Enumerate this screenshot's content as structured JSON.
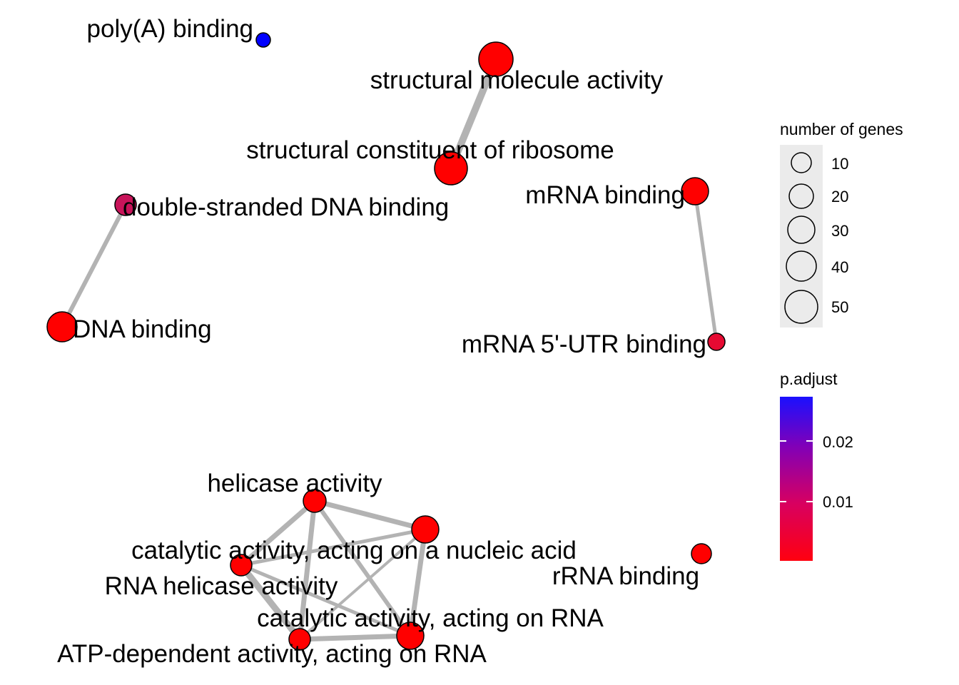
{
  "network": {
    "nodes": [
      {
        "id": "polyA",
        "label": "poly(A) binding",
        "color": "#0000ff"
      },
      {
        "id": "sma",
        "label": "structural molecule activity",
        "color": "#ff0000"
      },
      {
        "id": "scr",
        "label": "structural constituent of ribosome",
        "color": "#ff0000"
      },
      {
        "id": "dsdna",
        "label": "double-stranded DNA binding",
        "color": "#c8145a"
      },
      {
        "id": "dna",
        "label": "DNA binding",
        "color": "#ff0000"
      },
      {
        "id": "mrna",
        "label": "mRNA binding",
        "color": "#ff0000"
      },
      {
        "id": "mrna5",
        "label": "mRNA 5'-UTR binding",
        "color": "#e60a32"
      },
      {
        "id": "heli",
        "label": "helicase activity",
        "color": "#ff0000"
      },
      {
        "id": "cat_na",
        "label": "catalytic activity, acting on a nucleic acid",
        "color": "#ff0000"
      },
      {
        "id": "rnah",
        "label": "RNA helicase activity",
        "color": "#ff0000"
      },
      {
        "id": "cat_rna",
        "label": "catalytic activity, acting on RNA",
        "color": "#ff0000"
      },
      {
        "id": "atp",
        "label": "ATP-dependent activity, acting on RNA",
        "color": "#ff0000"
      },
      {
        "id": "rrna",
        "label": "rRNA binding",
        "color": "#ff0000"
      }
    ],
    "edges": [
      {
        "source": "sma",
        "target": "scr"
      },
      {
        "source": "dsdna",
        "target": "dna"
      },
      {
        "source": "mrna",
        "target": "mrna5"
      },
      {
        "source": "heli",
        "target": "cat_na"
      },
      {
        "source": "heli",
        "target": "rnah"
      },
      {
        "source": "heli",
        "target": "cat_rna"
      },
      {
        "source": "heli",
        "target": "atp"
      },
      {
        "source": "cat_na",
        "target": "rnah"
      },
      {
        "source": "cat_na",
        "target": "cat_rna"
      },
      {
        "source": "cat_na",
        "target": "atp"
      },
      {
        "source": "rnah",
        "target": "cat_rna"
      },
      {
        "source": "rnah",
        "target": "atp"
      },
      {
        "source": "cat_rna",
        "target": "atp"
      }
    ]
  },
  "legend": {
    "size_title": "number of genes",
    "size_labels": [
      "10",
      "20",
      "30",
      "40",
      "50"
    ],
    "color_title": "p.adjust",
    "color_labels": [
      "0.02",
      "0.01"
    ],
    "gradient_colors": [
      "#0000ff",
      "#ff0000"
    ]
  }
}
